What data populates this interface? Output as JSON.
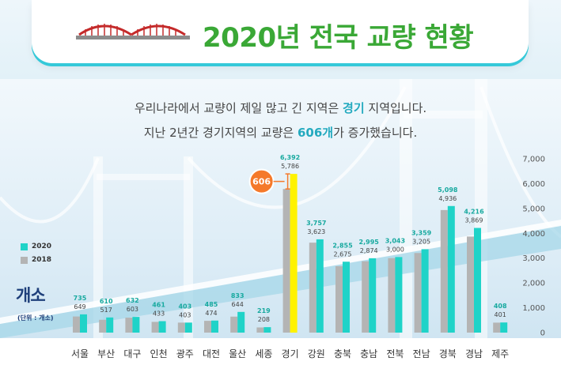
{
  "header": {
    "title": "2020년 전국 교량 현황"
  },
  "intro": {
    "line1_prefix": "우리나라에서 교량이 제일 많고 긴 지역은 ",
    "line1_highlight": "경기",
    "line1_suffix": " 지역입니다.",
    "line2_prefix": "지난 2년간 경기지역의 교량은 ",
    "line2_highlight": "606개",
    "line2_suffix": "가 증가했습니다."
  },
  "legend": {
    "item_2020": "2020",
    "item_2018": "2018"
  },
  "unit": {
    "label": "개소",
    "note": "(단위 : 개소)"
  },
  "colors": {
    "accent_2020": "#1fd3c8",
    "accent_2018": "#b4b4b4",
    "highlight_bar": "#fff200",
    "callout": "#f5792a",
    "title_green": "#3aa836",
    "bridge_red": "#c42a2a"
  },
  "chart_data": {
    "type": "bar",
    "title": "2020년 전국 교량 현황",
    "ylabel": "개소",
    "ylim": [
      0,
      7000
    ],
    "yticks": [
      "0",
      "1,000",
      "2,000",
      "3,000",
      "4,000",
      "5,000",
      "6,000",
      "7,000"
    ],
    "categories": [
      "서울",
      "부산",
      "대구",
      "인천",
      "광주",
      "대전",
      "울산",
      "세종",
      "경기",
      "강원",
      "충북",
      "충남",
      "전북",
      "전남",
      "경북",
      "경남",
      "제주"
    ],
    "series": [
      {
        "name": "2018",
        "values": [
          649,
          517,
          603,
          433,
          403,
          474,
          644,
          208,
          5786,
          3623,
          2675,
          2874,
          3000,
          3205,
          4936,
          3869,
          401
        ],
        "labels": [
          "649",
          "517",
          "603",
          "433",
          "403",
          "474",
          "644",
          "208",
          "5,786",
          "3,623",
          "2,675",
          "2,874",
          "3,000",
          "3,205",
          "4,936",
          "3,869",
          "401"
        ]
      },
      {
        "name": "2020",
        "values": [
          735,
          610,
          632,
          461,
          403,
          485,
          833,
          219,
          6392,
          3757,
          2855,
          2995,
          3043,
          3359,
          5098,
          4216,
          408
        ],
        "labels": [
          "735",
          "610",
          "632",
          "461",
          "403",
          "485",
          "833",
          "219",
          "6,392",
          "3,757",
          "2,855",
          "2,995",
          "3,043",
          "3,359",
          "5,098",
          "4,216",
          "408"
        ]
      }
    ],
    "highlight_category": "경기",
    "highlight_callout": "606"
  }
}
